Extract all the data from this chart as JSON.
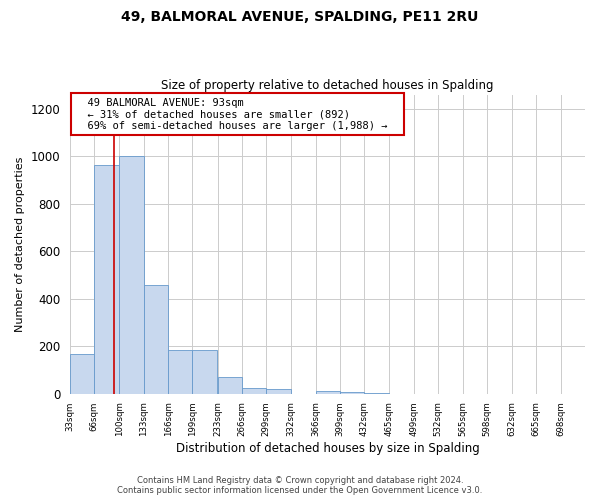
{
  "title": "49, BALMORAL AVENUE, SPALDING, PE11 2RU",
  "subtitle": "Size of property relative to detached houses in Spalding",
  "xlabel": "Distribution of detached houses by size in Spalding",
  "ylabel": "Number of detached properties",
  "bin_edges": [
    33,
    66,
    100,
    133,
    166,
    199,
    233,
    266,
    299,
    332,
    366,
    399,
    432,
    465,
    499,
    532,
    565,
    598,
    632,
    665,
    698
  ],
  "bar_heights": [
    170,
    965,
    1000,
    460,
    185,
    185,
    70,
    25,
    20,
    0,
    12,
    8,
    5,
    0,
    0,
    0,
    0,
    0,
    0,
    0
  ],
  "bar_color": "#c8d8ee",
  "bar_edge_color": "#6699cc",
  "property_size": 93,
  "red_line_color": "#cc0000",
  "annotation_title": "49 BALMORAL AVENUE: 93sqm",
  "annotation_line1": "← 31% of detached houses are smaller (892)",
  "annotation_line2": "69% of semi-detached houses are larger (1,988) →",
  "annotation_box_color": "#ffffff",
  "annotation_box_edge": "#cc0000",
  "ylim": [
    0,
    1260
  ],
  "yticks": [
    0,
    200,
    400,
    600,
    800,
    1000,
    1200
  ],
  "footer_line1": "Contains HM Land Registry data © Crown copyright and database right 2024.",
  "footer_line2": "Contains public sector information licensed under the Open Government Licence v3.0.",
  "bg_color": "#ffffff",
  "grid_color": "#cccccc"
}
